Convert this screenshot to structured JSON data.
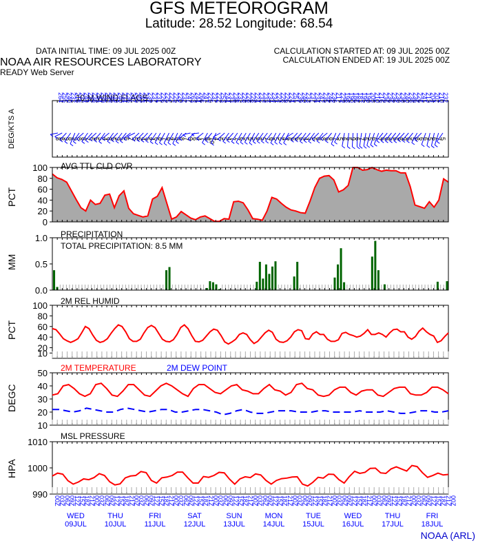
{
  "header": {
    "title": "GFS METEOROGRAM",
    "subtitle": "Latitude: 28.52 Longitude:  68.54",
    "initial_time": "DATA INITIAL TIME: 09 JUL 2025 00Z",
    "calc_started": "CALCULATION STARTED AT: 09 JUL 2025 00Z",
    "calc_ended": "CALCULATION ENDED AT: 19 JUL 2025 00Z",
    "lab": "NOAA AIR RESOURCES LABORATORY",
    "server": "READY Web Server",
    "credit": "NOAA (ARL)"
  },
  "chart_data": [
    {
      "type": "wind-barbs",
      "title": "10 M  WIND FLAGS",
      "ylabel": "DEG/KTS  A",
      "direction_deg": [
        264,
        255,
        240,
        232,
        218,
        232,
        244,
        232,
        238,
        244,
        239,
        232,
        246,
        233,
        240,
        234,
        236,
        247,
        255,
        243,
        241,
        239,
        237,
        231,
        226,
        225,
        222,
        225,
        220,
        232,
        247,
        263,
        244,
        266,
        247,
        225,
        237,
        222,
        253,
        244,
        233,
        238,
        232,
        228,
        228,
        228,
        224,
        232,
        233,
        234,
        234,
        224,
        228,
        226,
        224,
        251,
        239,
        240,
        233,
        237,
        234,
        242,
        235,
        246,
        236,
        217,
        229,
        198,
        190,
        186,
        182,
        195,
        196,
        205,
        210,
        216,
        236,
        236,
        236,
        236,
        236,
        240,
        238,
        236,
        226,
        241,
        213,
        204,
        202,
        210,
        232
      ],
      "speed_kts": [
        8,
        8,
        9,
        8,
        9,
        8,
        8,
        7,
        6,
        5,
        5,
        4,
        8,
        5,
        9,
        5,
        6,
        7,
        5,
        6,
        4,
        5,
        4,
        6,
        8,
        7,
        6,
        4,
        8,
        8,
        7,
        9,
        6,
        4,
        7,
        8,
        10,
        4,
        6,
        5,
        4,
        7,
        7,
        6,
        5,
        5,
        5,
        6,
        5,
        7,
        6,
        5,
        5,
        4,
        6,
        6,
        5,
        6,
        4,
        5,
        6,
        8,
        8,
        6,
        8,
        7,
        5,
        6,
        5,
        9,
        6,
        7,
        5,
        5,
        6,
        7,
        6,
        8,
        5,
        6,
        8,
        9,
        6,
        5,
        8,
        6,
        6,
        5,
        6,
        7,
        5
      ]
    },
    {
      "type": "area",
      "title": "AVG TTL CLD CVR",
      "ylabel": "PCT",
      "ylim": [
        0,
        100
      ],
      "yticks": [
        0,
        20,
        40,
        60,
        80,
        100
      ],
      "values": [
        88,
        81,
        78,
        73,
        57,
        41,
        26,
        20,
        40,
        32,
        34,
        49,
        51,
        26,
        48,
        57,
        25,
        15,
        12,
        9,
        11,
        42,
        47,
        63,
        34,
        5,
        9,
        19,
        13,
        7,
        4,
        9,
        11,
        6,
        1,
        1,
        6,
        5,
        37,
        38,
        35,
        22,
        6,
        5,
        3,
        20,
        45,
        42,
        34,
        27,
        22,
        20,
        17,
        16,
        38,
        63,
        80,
        84,
        85,
        77,
        55,
        59,
        67,
        100,
        100,
        95,
        96,
        100,
        96,
        93,
        95,
        94,
        94,
        90,
        90,
        65,
        31,
        28,
        25,
        37,
        27,
        40,
        79,
        73
      ],
      "color": "#a9a9a9",
      "line_color": "#ff0000"
    },
    {
      "type": "bar",
      "title": "PRECIPITATION",
      "annotation": "TOTAL PRECIPITATION:   8.5 MM",
      "ylabel": "MM",
      "ylim": [
        0,
        1.0
      ],
      "yticks": [
        "0.0",
        "0.5",
        "1.0"
      ],
      "values": [
        0.38,
        0.06,
        0,
        0,
        0,
        0,
        0,
        0,
        0,
        0,
        0,
        0,
        0,
        0,
        0,
        0,
        0,
        0,
        0,
        0,
        0,
        0,
        0,
        0,
        0,
        0,
        0,
        0,
        0,
        0,
        0,
        0,
        0,
        0,
        0,
        0,
        0.38,
        0.44,
        0,
        0,
        0,
        0,
        0,
        0,
        0,
        0,
        0,
        0,
        0,
        0.04,
        0.17,
        0.15,
        0.11,
        0.02,
        0,
        0,
        0,
        0,
        0,
        0,
        0,
        0,
        0,
        0,
        0,
        0.16,
        0.54,
        0.22,
        0.49,
        0.31,
        0.45,
        0.55,
        0,
        0,
        0,
        0,
        0,
        0.26,
        0.54,
        0,
        0,
        0,
        0,
        0,
        0,
        0,
        0,
        0,
        0,
        0,
        0.24,
        0.49,
        0.8,
        0.15,
        0,
        0,
        0,
        0,
        0,
        0,
        0,
        0,
        0.64,
        0.94,
        0.38,
        0,
        0.11,
        0,
        0,
        0,
        0,
        0,
        0,
        0,
        0,
        0,
        0,
        0,
        0,
        0,
        0,
        0,
        0,
        0.16,
        0,
        0,
        0.17
      ],
      "color": "#006400"
    },
    {
      "type": "line",
      "title": "2M REL HUMID",
      "ylabel": "PCT",
      "ylim": [
        0,
        100
      ],
      "yticks": [
        10,
        20,
        40,
        60,
        80,
        100
      ],
      "values": [
        56,
        54,
        46,
        37,
        33,
        30,
        33,
        37,
        48,
        60,
        56,
        44,
        34,
        30,
        32,
        37,
        47,
        56,
        63,
        60,
        50,
        37,
        32,
        32,
        36,
        48,
        58,
        62,
        58,
        47,
        36,
        32,
        31,
        35,
        45,
        58,
        63,
        56,
        43,
        32,
        31,
        34,
        42,
        50,
        55,
        53,
        43,
        31,
        27,
        31,
        36,
        45,
        48,
        45,
        35,
        28,
        32,
        40,
        48,
        53,
        49,
        36,
        31,
        30,
        33,
        40,
        50,
        54,
        52,
        37,
        36,
        46,
        50,
        45,
        45,
        36,
        32,
        32,
        35,
        47,
        49,
        45,
        43,
        40,
        42,
        47,
        54,
        45,
        45,
        48,
        45,
        40,
        48,
        54,
        55,
        50,
        50,
        40,
        36,
        41,
        51,
        57,
        50,
        45,
        42,
        30,
        33,
        41,
        48
      ],
      "color": "#ff0000"
    },
    {
      "type": "line",
      "title_a": "2M TEMPERATURE",
      "title_b": "2M   DEW POINT",
      "ylabel": "DEGC",
      "ylim": [
        10,
        50
      ],
      "yticks": [
        10,
        20,
        30,
        40,
        50
      ],
      "series": [
        {
          "name": "2M TEMPERATURE",
          "color": "#ff0000",
          "values": [
            33,
            34,
            40,
            41,
            38,
            34,
            32,
            34,
            41,
            42,
            38,
            33,
            32,
            36,
            41,
            41,
            37,
            33,
            32,
            36,
            40,
            42,
            40,
            37,
            34,
            32,
            38,
            41,
            41,
            38,
            35,
            34,
            37,
            40,
            41,
            37,
            36,
            34,
            34,
            38,
            41,
            37,
            36,
            33,
            35,
            41,
            42,
            38,
            37,
            33,
            32,
            33,
            37,
            39,
            39,
            35,
            33,
            36,
            37,
            37,
            33,
            32,
            35,
            38,
            39,
            39,
            34,
            33,
            33,
            35,
            39,
            39,
            37,
            34
          ]
        },
        {
          "name": "2M   DEW POINT",
          "color": "#0000ff",
          "values": [
            22,
            22,
            21,
            20,
            21,
            23,
            22,
            21,
            20,
            20,
            22,
            23,
            22,
            21,
            20,
            21,
            22,
            22,
            20,
            20,
            21,
            22,
            22,
            21,
            20,
            18,
            19,
            21,
            22,
            20,
            19,
            19,
            20,
            21,
            21,
            21,
            20,
            20,
            20,
            21,
            21,
            20,
            20,
            20,
            20,
            21,
            20,
            20,
            20,
            21,
            20,
            19,
            19,
            20,
            21,
            21,
            20,
            20,
            21
          ]
        }
      ]
    },
    {
      "type": "line",
      "title": "MSL PRESSURE",
      "ylabel": "HPA",
      "ylim": [
        990,
        1010
      ],
      "yticks": [
        990,
        1000,
        1010
      ],
      "values": [
        996.9,
        998.0,
        997.6,
        995.1,
        993.8,
        994.6,
        995.8,
        995.5,
        996.3,
        997.8,
        997.1,
        994.7,
        993.5,
        993.9,
        996.2,
        996.9,
        997.1,
        998.6,
        998.2,
        995.2,
        994.2,
        996.2,
        996.5,
        997.1,
        998.4,
        998.4,
        996.2,
        994.2,
        994.2,
        996.7,
        996.4,
        997.1,
        998.3,
        998.1,
        995.7,
        993.8,
        995.8,
        996.6,
        996.3,
        997.7,
        997.3,
        995.2,
        993.8,
        995.2,
        995.9,
        996.1,
        996.5,
        996.6,
        993.8,
        993.1,
        994.5,
        996.4,
        996.1,
        997.6,
        997.5,
        995.5,
        994.2,
        996.7,
        998.7,
        997.9,
        998.3,
        999.8,
        999.9,
        998.1,
        997.9,
        999.6,
        1000.4,
        999.6,
        998.8,
        1000.9,
        1000.5,
        998.2,
        996.4,
        997.1,
        998.0,
        997.3,
        997.5
      ]
    }
  ],
  "x_axis": {
    "hour_labels": [
      "00Z",
      "03Z",
      "06Z",
      "09Z",
      "12Z",
      "15Z",
      "18Z",
      "21Z"
    ],
    "days": [
      {
        "dow": "WED",
        "date": "09JUL"
      },
      {
        "dow": "THU",
        "date": "10JUL"
      },
      {
        "dow": "FRI",
        "date": "11JUL"
      },
      {
        "dow": "SAT",
        "date": "12JUL"
      },
      {
        "dow": "SUN",
        "date": "13JUL"
      },
      {
        "dow": "MON",
        "date": "14JUL"
      },
      {
        "dow": "TUE",
        "date": "15JUL"
      },
      {
        "dow": "WED",
        "date": "16JUL"
      },
      {
        "dow": "THU",
        "date": "17JUL"
      },
      {
        "dow": "FRI",
        "date": "18JUL"
      }
    ]
  }
}
